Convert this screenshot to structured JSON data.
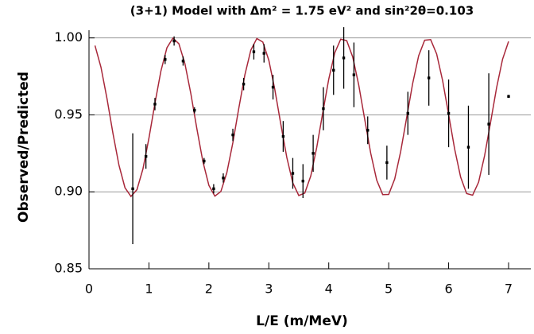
{
  "chart_data": {
    "type": "scatter",
    "title": "(3+1) Model with Δm² = 1.75 eV² and sin²2θ=0.103",
    "x_label": "L/E (m/MeV)",
    "y_label": "Observed/Predicted",
    "xlim": [
      0,
      7
    ],
    "ylim": [
      0.85,
      1.005
    ],
    "xticks": [
      0,
      1,
      2,
      3,
      4,
      5,
      6,
      7
    ],
    "yticks": [
      {
        "value": 0.85,
        "label": "0.85"
      },
      {
        "value": 0.9,
        "label": "0.90"
      },
      {
        "value": 0.95,
        "label": "0.95"
      },
      {
        "value": 1.0,
        "label": "1.00"
      }
    ],
    "grid": true,
    "points": {
      "color": "#000000",
      "x": [
        0.73,
        0.95,
        1.1,
        1.27,
        1.42,
        1.57,
        1.76,
        1.92,
        2.08,
        2.24,
        2.4,
        2.58,
        2.75,
        2.92,
        3.07,
        3.24,
        3.4,
        3.57,
        3.74,
        3.91,
        4.08,
        4.25,
        4.42,
        4.65,
        4.97,
        5.32,
        5.67,
        6.0,
        6.33,
        6.67,
        7.0
      ],
      "values": [
        0.902,
        0.923,
        0.957,
        0.986,
        0.998,
        0.985,
        0.953,
        0.92,
        0.902,
        0.909,
        0.937,
        0.97,
        0.991,
        0.99,
        0.968,
        0.936,
        0.912,
        0.907,
        0.925,
        0.954,
        0.979,
        0.987,
        0.976,
        0.94,
        0.919,
        0.951,
        0.974,
        0.951,
        0.929,
        0.944,
        0.962
      ],
      "errors": [
        0.036,
        0.008,
        0.004,
        0.003,
        0.003,
        0.003,
        0.002,
        0.002,
        0.003,
        0.003,
        0.004,
        0.004,
        0.005,
        0.006,
        0.008,
        0.01,
        0.01,
        0.011,
        0.012,
        0.014,
        0.016,
        0.02,
        0.021,
        0.009,
        0.011,
        0.014,
        0.018,
        0.022,
        0.027,
        0.033,
        0.001
      ]
    },
    "curve": {
      "color": "#a8283a",
      "x": [
        0.1,
        0.2,
        0.3,
        0.4,
        0.5,
        0.6,
        0.7,
        0.8,
        0.9,
        1.0,
        1.1,
        1.2,
        1.3,
        1.4,
        1.5,
        1.6,
        1.7,
        1.8,
        1.9,
        2.0,
        2.1,
        2.2,
        2.3,
        2.4,
        2.5,
        2.6,
        2.7,
        2.8,
        2.9,
        3.0,
        3.1,
        3.2,
        3.3,
        3.4,
        3.5,
        3.6,
        3.7,
        3.8,
        3.9,
        4.0,
        4.1,
        4.2,
        4.3,
        4.4,
        4.5,
        4.6,
        4.7,
        4.8,
        4.9,
        5.0,
        5.1,
        5.2,
        5.3,
        5.4,
        5.5,
        5.6,
        5.7,
        5.8,
        5.9,
        6.0,
        6.1,
        6.2,
        6.3,
        6.4,
        6.5,
        6.6,
        6.7,
        6.8,
        6.9,
        7.0
      ],
      "values": [
        0.995,
        0.9809,
        0.9606,
        0.9379,
        0.9173,
        0.9027,
        0.897,
        0.9014,
        0.9149,
        0.9349,
        0.9575,
        0.9785,
        0.9936,
        0.9999,
        0.9962,
        0.9833,
        0.9636,
        0.9409,
        0.9197,
        0.9042,
        0.8972,
        0.9002,
        0.9125,
        0.9319,
        0.9545,
        0.9759,
        0.9921,
        0.9996,
        0.9973,
        0.9855,
        0.9665,
        0.944,
        0.9224,
        0.9058,
        0.8976,
        0.8992,
        0.9103,
        0.929,
        0.9514,
        0.9732,
        0.9903,
        0.9992,
        0.9982,
        0.9876,
        0.9694,
        0.9471,
        0.9251,
        0.9076,
        0.8982,
        0.8983,
        0.9083,
        0.9262,
        0.9483,
        0.9704,
        0.9884,
        0.9985,
        0.9989,
        0.9896,
        0.9722,
        0.9502,
        0.9279,
        0.9096,
        0.8989,
        0.8978,
        0.9063,
        0.9235,
        0.9452,
        0.9676,
        0.9862,
        0.9977
      ]
    }
  }
}
